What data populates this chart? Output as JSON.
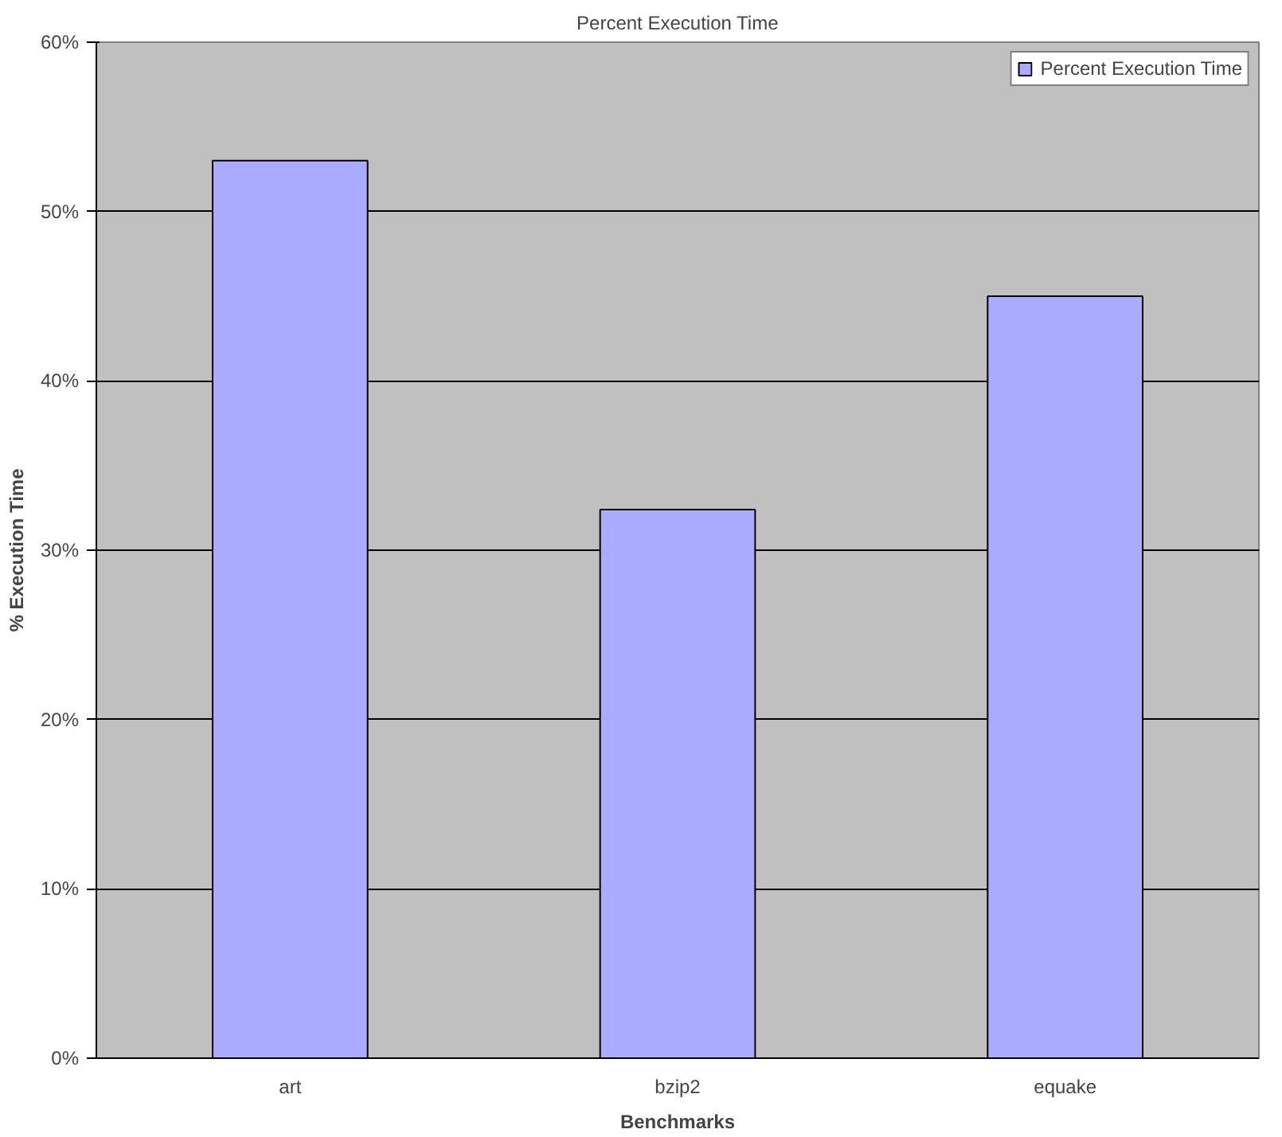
{
  "chart_data": {
    "type": "bar",
    "title": "Percent Execution Time",
    "xlabel": "Benchmarks",
    "ylabel": "% Execution Time",
    "categories": [
      "art",
      "bzip2",
      "equake"
    ],
    "series": [
      {
        "name": "Percent Execution Time",
        "color": "#aaaaff",
        "values": [
          53.0,
          32.4,
          45.0
        ]
      }
    ],
    "ylim": [
      0,
      60
    ],
    "yticks": [
      {
        "value": 0,
        "label": "0%"
      },
      {
        "value": 10,
        "label": "10%"
      },
      {
        "value": 20,
        "label": "20%"
      },
      {
        "value": 30,
        "label": "30%"
      },
      {
        "value": 40,
        "label": "40%"
      },
      {
        "value": 50,
        "label": "50%"
      },
      {
        "value": 60,
        "label": "60%"
      }
    ],
    "grid": "y",
    "legend": "top right"
  }
}
